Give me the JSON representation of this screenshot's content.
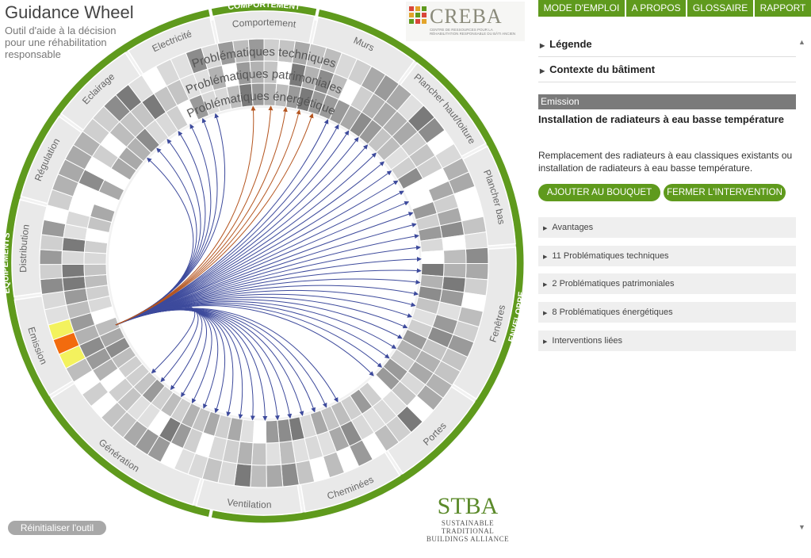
{
  "app": {
    "title": "Guidance Wheel",
    "subtitle": "Outil d'aide à la décision pour une réhabilitation responsable",
    "reset_label": "Réinitialiser l'outil"
  },
  "logos": {
    "creba": {
      "word": "CREBA",
      "subtitle": "CENTRE DE RESSOURCES POUR LA RÉHABILITATION RESPONSABLE DU BÂTI ANCIEN"
    },
    "stba": {
      "word": "STBA",
      "subtitle_1": "SUSTAINABLE TRADITIONAL",
      "subtitle_2": "BUILDINGS ALLIANCE"
    }
  },
  "menu": [
    "MODE D'EMPLOI",
    "A PROPOS",
    "GLOSSAIRE",
    "RAPPORT"
  ],
  "panel": {
    "legend_label": "Légende",
    "context_label": "Contexte du bâtiment",
    "category": "Emission",
    "intervention_title": "Installation de radiateurs à eau basse température",
    "intervention_desc": "Remplacement des radiateurs à eau classiques existants ou installation de radiateurs à eau basse température.",
    "add_label": "AJOUTER AU BOUQUET",
    "close_label": "FERMER L'INTERVENTION",
    "sections": [
      "Avantages",
      "11 Problématiques techniques",
      "2 Problématiques patrimoniales",
      "8 Problématiques énergétiques",
      "Interventions liées"
    ]
  },
  "wheel": {
    "groups": [
      "COMPORTEMENT",
      "ENVELOPPE",
      "EQUIPEMENTS"
    ],
    "domains": [
      "Comportement",
      "Murs",
      "Plancher haut/toiture",
      "Plancher bas",
      "Fenêtres",
      "Portes",
      "Cheminées",
      "Ventilation",
      "Génération",
      "Emission",
      "Distribution",
      "Régulation",
      "Eclairage",
      "Electricité"
    ],
    "ring_labels": [
      "Problématiques techniques",
      "Problématiques patrimoniales",
      "Problématiques énergétiques"
    ]
  },
  "colors": {
    "brand_green": "#5f9a1d",
    "link_blue": "#3d4a9c",
    "link_orange": "#b4541e",
    "highlight_yellow": "#f3f25e",
    "highlight_orange": "#f26b0e"
  }
}
